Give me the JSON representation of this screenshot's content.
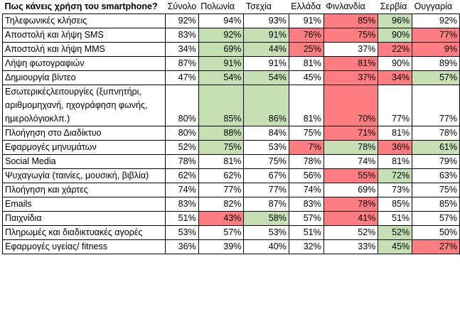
{
  "table": {
    "header": [
      "Πως κάνεις χρήση του smartphone?",
      "Σύνολο",
      "Πολωνία",
      "Τσεχία",
      "Ελλάδα",
      "Φινλανδία",
      "Σερβία",
      "Ουγγαρία"
    ],
    "rows": [
      {
        "label": "Τηλεφωνικές κλήσεις",
        "cells": [
          "92%",
          "94%",
          "93%",
          "91%",
          "85%",
          "96%",
          "92%"
        ],
        "fills": [
          null,
          null,
          null,
          null,
          "#ff7c80",
          "#c6e0b4",
          null
        ]
      },
      {
        "label": "Αποστολή και λήψη SMS",
        "cells": [
          "83%",
          "92%",
          "91%",
          "76%",
          "75%",
          "90%",
          "77%"
        ],
        "fills": [
          null,
          "#c6e0b4",
          "#c6e0b4",
          "#ff7c80",
          "#ff7c80",
          "#c6e0b4",
          "#ff7c80"
        ]
      },
      {
        "label": "Αποστολή και λήψη MMS",
        "cells": [
          "34%",
          "69%",
          "44%",
          "25%",
          "37%",
          "22%",
          "9%"
        ],
        "fills": [
          null,
          "#c6e0b4",
          "#c6e0b4",
          "#ff7c80",
          null,
          "#ff7c80",
          "#ff7c80"
        ]
      },
      {
        "label": "Λήψη φωτογραφιών",
        "cells": [
          "87%",
          "91%",
          "91%",
          "81%",
          "81%",
          "90%",
          "89%"
        ],
        "fills": [
          null,
          "#c6e0b4",
          null,
          null,
          "#ff7c80",
          null,
          null
        ]
      },
      {
        "label": "Δημιουργία βίντεο",
        "cells": [
          "47%",
          "54%",
          "54%",
          "45%",
          "37%",
          "34%",
          "57%"
        ],
        "fills": [
          null,
          "#c6e0b4",
          "#c6e0b4",
          null,
          "#ff7c80",
          "#ff7c80",
          "#c6e0b4"
        ]
      },
      {
        "label": "Εσωτερικέςλειτουργίες (ξυπνητήρι, αριθμομηχανή, ηχογράφηση φωνής, ημερολόγιοκλπ.)",
        "cells": [
          "80%",
          "85%",
          "86%",
          "81%",
          "70%",
          "77%",
          "77%"
        ],
        "fills": [
          null,
          "#c6e0b4",
          "#c6e0b4",
          null,
          "#ff7c80",
          null,
          null
        ]
      },
      {
        "label": "Πλοήγηση στο Διαδίκτυο",
        "cells": [
          "80%",
          "88%",
          "84%",
          "75%",
          "71%",
          "81%",
          "78%"
        ],
        "fills": [
          null,
          "#c6e0b4",
          null,
          null,
          "#ff7c80",
          null,
          null
        ]
      },
      {
        "label": "Εφαρμογές μηνυμάτων",
        "cells": [
          "52%",
          "75%",
          "53%",
          "7%",
          "78%",
          "36%",
          "61%"
        ],
        "fills": [
          null,
          "#c6e0b4",
          null,
          "#ff7c80",
          "#c6e0b4",
          "#ff7c80",
          "#c6e0b4"
        ]
      },
      {
        "label": "Social Media",
        "cells": [
          "78%",
          "81%",
          "75%",
          "78%",
          "74%",
          "81%",
          "79%"
        ],
        "fills": [
          null,
          null,
          null,
          null,
          null,
          null,
          null
        ]
      },
      {
        "label": "Ψυχαγωγία (ταινίες, μουσική, βιβλία)",
        "cells": [
          "62%",
          "62%",
          "67%",
          "56%",
          "55%",
          "72%",
          "63%"
        ],
        "fills": [
          null,
          null,
          null,
          null,
          "#ff7c80",
          "#c6e0b4",
          null
        ]
      },
      {
        "label": "Πλοήγηση και χάρτες",
        "cells": [
          "74%",
          "77%",
          "77%",
          "74%",
          "69%",
          "73%",
          "75%"
        ],
        "fills": [
          null,
          null,
          null,
          null,
          null,
          null,
          null
        ]
      },
      {
        "label": "Emails",
        "cells": [
          "83%",
          "82%",
          "87%",
          "83%",
          "78%",
          "85%",
          "85%"
        ],
        "fills": [
          null,
          null,
          null,
          null,
          "#ff7c80",
          null,
          null
        ]
      },
      {
        "label": "Παιχνίδια",
        "cells": [
          "51%",
          "43%",
          "58%",
          "57%",
          "41%",
          "51%",
          "57%"
        ],
        "fills": [
          null,
          "#ff7c80",
          "#c6e0b4",
          null,
          "#ff7c80",
          null,
          null
        ]
      },
      {
        "label": "Πληρωμές και διαδικτυακές αγορές",
        "cells": [
          "53%",
          "57%",
          "53%",
          "51%",
          "52%",
          "52%",
          "50%"
        ],
        "fills": [
          null,
          null,
          null,
          null,
          null,
          "#c6e0b4",
          null
        ]
      },
      {
        "label": "Εφαρμογές υγείας/ fitness",
        "cells": [
          "36%",
          "39%",
          "40%",
          "32%",
          "33%",
          "45%",
          "27%"
        ],
        "fills": [
          null,
          null,
          null,
          null,
          null,
          "#c6e0b4",
          "#ff7c80"
        ]
      }
    ]
  }
}
